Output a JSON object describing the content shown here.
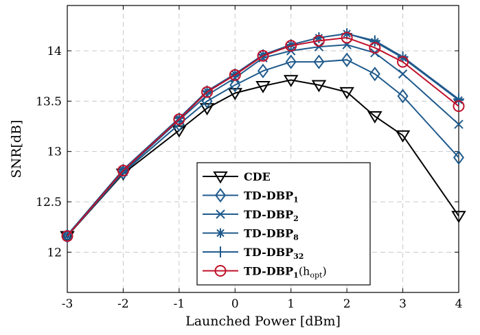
{
  "chart_data": {
    "type": "line",
    "xlabel": "Launched Power [dBm]",
    "ylabel": "SNR[dB]",
    "xlim": [
      -3,
      4
    ],
    "ylim": [
      11.6,
      14.45
    ],
    "x_ticks": [
      "-3",
      "-2",
      "-1",
      "0",
      "1",
      "2",
      "3",
      "4"
    ],
    "y_ticks": [
      "12",
      "12.5",
      "13",
      "13.5",
      "14"
    ],
    "grid": true,
    "legend_position": "bottom-center",
    "x": [
      -3,
      -2,
      -1,
      -0.5,
      0,
      0.5,
      1,
      1.5,
      2,
      2.5,
      3,
      4
    ],
    "series": [
      {
        "name": "CDE",
        "legend": {
          "main": "CDE",
          "sub": "",
          "tail": ""
        },
        "marker": "triangle-down",
        "color": "#000000",
        "values": [
          12.16,
          12.78,
          13.21,
          13.43,
          13.58,
          13.65,
          13.71,
          13.66,
          13.59,
          13.35,
          13.16,
          12.36
        ]
      },
      {
        "name": "TD-DBP1",
        "legend": {
          "main": "TD-DBP",
          "sub": "1",
          "tail": ""
        },
        "marker": "diamond",
        "color": "#1f5a8c",
        "values": [
          12.16,
          12.79,
          13.27,
          13.5,
          13.66,
          13.8,
          13.89,
          13.89,
          13.91,
          13.77,
          13.55,
          12.94
        ]
      },
      {
        "name": "TD-DBP2",
        "legend": {
          "main": "TD-DBP",
          "sub": "2",
          "tail": ""
        },
        "marker": "x",
        "color": "#1f5a8c",
        "values": [
          12.16,
          12.8,
          13.31,
          13.56,
          13.73,
          13.93,
          14.0,
          14.04,
          14.06,
          13.98,
          13.77,
          13.27
        ]
      },
      {
        "name": "TD-DBP8",
        "legend": {
          "main": "TD-DBP",
          "sub": "8",
          "tail": ""
        },
        "marker": "asterisk",
        "color": "#1f5a8c",
        "values": [
          12.17,
          12.82,
          13.33,
          13.6,
          13.77,
          13.96,
          14.06,
          14.13,
          14.17,
          14.09,
          13.93,
          13.51
        ]
      },
      {
        "name": "TD-DBP32",
        "legend": {
          "main": "TD-DBP",
          "sub": "32",
          "tail": ""
        },
        "marker": "plus",
        "color": "#1f5a8c",
        "values": [
          12.17,
          12.82,
          13.33,
          13.6,
          13.77,
          13.96,
          14.06,
          14.13,
          14.17,
          14.1,
          13.94,
          13.52
        ]
      },
      {
        "name": "TD-DBP1(hopt)",
        "legend": {
          "main": "TD-DBP",
          "sub": "1",
          "tail": "(h",
          "tail_sub": "opt",
          "tail_end": ")"
        },
        "marker": "circle",
        "color": "#c0102a",
        "values": [
          12.16,
          12.81,
          13.32,
          13.59,
          13.76,
          13.95,
          14.05,
          14.1,
          14.13,
          14.03,
          13.89,
          13.45
        ]
      }
    ]
  }
}
